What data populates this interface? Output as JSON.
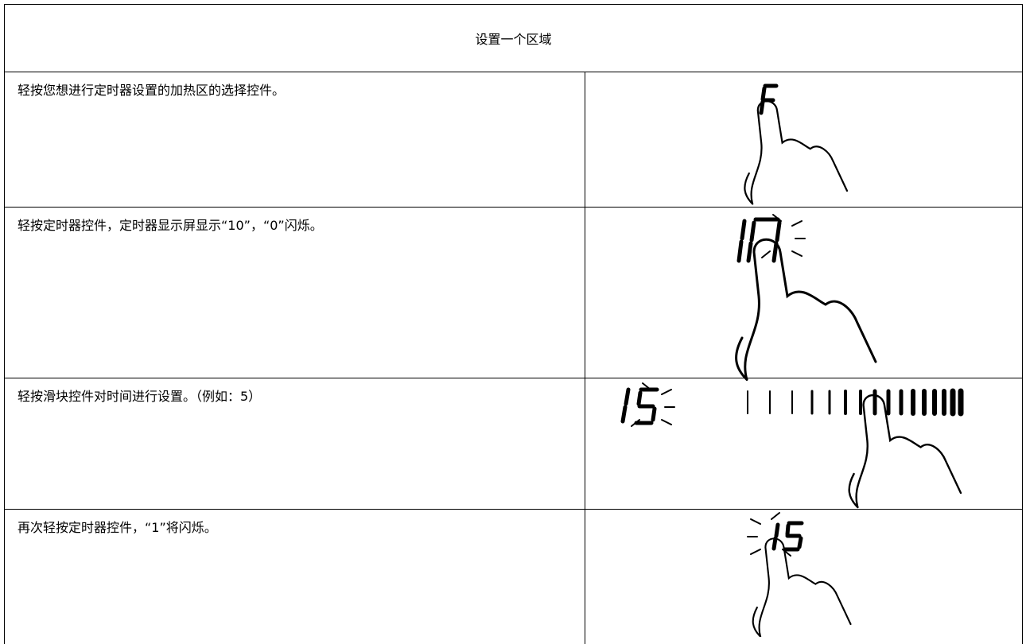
{
  "header": {
    "title": "设置一个区域"
  },
  "table": {
    "rows": [
      [
        "轻按您想进行定时器设置的加热区的选择控件。"
      ],
      [
        "轻按定时器控件，定时器显示屏显示“10”，“0”闪烁。"
      ],
      [
        "轻按滑块控件对时间进行设置。（例如：5）"
      ],
      [
        "再次轻按定时器控件，“1”将闪烁。"
      ]
    ]
  }
}
